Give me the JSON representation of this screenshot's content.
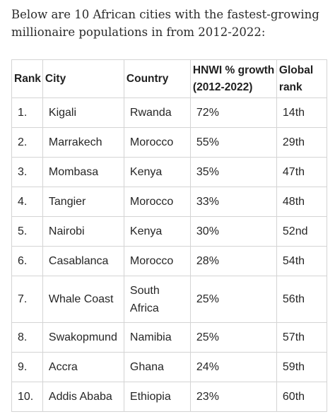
{
  "intro": "Below are 10 African cities with the fastest-growing millionaire populations in from 2012-2022:",
  "table": {
    "headers": {
      "rank": "Rank",
      "city": "City",
      "country": "Country",
      "growth_line1": "HNWI % growth",
      "growth_line2": "(2012-2022)",
      "global_line1": "Global",
      "global_line2": "rank"
    },
    "rows": [
      {
        "rank": "1.",
        "city": "Kigali",
        "country": "Rwanda",
        "growth": "72%",
        "global": "14th"
      },
      {
        "rank": "2.",
        "city": "Marrakech",
        "country": "Morocco",
        "growth": "55%",
        "global": "29th"
      },
      {
        "rank": "3.",
        "city": "Mombasa",
        "country": "Kenya",
        "growth": "35%",
        "global": "47th"
      },
      {
        "rank": "4.",
        "city": "Tangier",
        "country": "Morocco",
        "growth": "33%",
        "global": "48th"
      },
      {
        "rank": "5.",
        "city": "Nairobi",
        "country": "Kenya",
        "growth": "30%",
        "global": "52nd"
      },
      {
        "rank": "6.",
        "city": "Casablanca",
        "country": "Morocco",
        "growth": "28%",
        "global": "54th"
      },
      {
        "rank": "7.",
        "city": "Whale Coast",
        "country_line1": "South",
        "country_line2": "Africa",
        "growth": "25%",
        "global": "56th"
      },
      {
        "rank": "8.",
        "city": "Swakopmund",
        "country": "Namibia",
        "growth": "25%",
        "global": "57th"
      },
      {
        "rank": "9.",
        "city": "Accra",
        "country": "Ghana",
        "growth": "24%",
        "global": "59th"
      },
      {
        "rank": "10.",
        "city": "Addis Ababa",
        "country": "Ethiopia",
        "growth": "23%",
        "global": "60th"
      }
    ]
  }
}
